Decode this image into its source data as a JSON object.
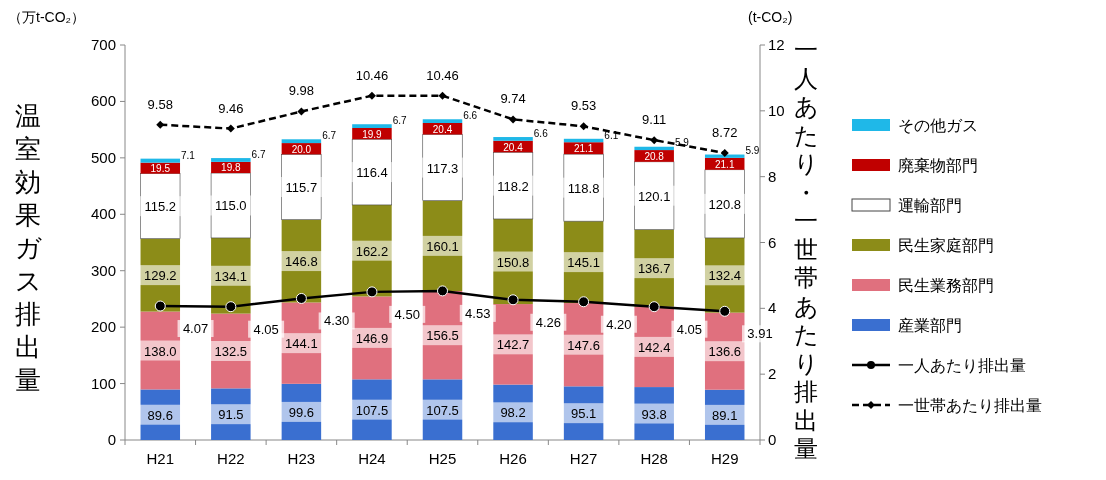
{
  "chart_data": {
    "type": "bar",
    "stacked": true,
    "categories": [
      "H21",
      "H22",
      "H23",
      "H24",
      "H25",
      "H26",
      "H27",
      "H28",
      "H29"
    ],
    "ylabel": "温室効果ガス排出量",
    "y2label": "一人あたり・一世帯あたり排出量",
    "ylim": [
      0,
      700
    ],
    "yticks": [
      0,
      100,
      200,
      300,
      400,
      500,
      600,
      700
    ],
    "y2lim": [
      0,
      12
    ],
    "y2ticks": [
      0,
      2,
      4,
      6,
      8,
      10,
      12
    ],
    "grid": false,
    "legend": "right",
    "annotations": [
      "（万t-CO₂）",
      "(t-CO₂)"
    ],
    "series": [
      {
        "name": "産業部門",
        "color": "#3a6fd0",
        "values": [
          89.6,
          91.5,
          99.6,
          107.5,
          107.5,
          98.2,
          95.1,
          93.8,
          89.1
        ],
        "value_labels": [
          "89.6",
          "91.5",
          "99.6",
          "107.5",
          "107.5",
          "98.2",
          "95.1",
          "93.8",
          "89.1"
        ]
      },
      {
        "name": "民生業務部門",
        "color": "#e0707e",
        "values": [
          138.0,
          132.5,
          144.1,
          146.9,
          156.5,
          142.7,
          147.6,
          142.4,
          136.6
        ],
        "value_labels": [
          "138.0",
          "132.5",
          "144.1",
          "146.9",
          "156.5",
          "142.7",
          "147.6",
          "142.4",
          "136.6"
        ]
      },
      {
        "name": "民生家庭部門",
        "color": "#8c8c18",
        "values": [
          129.2,
          134.1,
          146.8,
          162.2,
          160.1,
          150.8,
          145.1,
          136.7,
          132.4
        ],
        "value_labels": [
          "129.2",
          "134.1",
          "146.8",
          "162.2",
          "160.1",
          "150.8",
          "145.1",
          "136.7",
          "132.4"
        ]
      },
      {
        "name": "運輸部門",
        "color": "#ffffff",
        "values": [
          115.2,
          115.0,
          115.7,
          116.4,
          117.3,
          118.2,
          118.8,
          120.1,
          120.8
        ],
        "value_labels": [
          "115.2",
          "115.0",
          "115.7",
          "116.4",
          "117.3",
          "118.2",
          "118.8",
          "120.1",
          "120.8"
        ]
      },
      {
        "name": "廃棄物部門",
        "color": "#c00000",
        "values": [
          19.5,
          19.8,
          20.0,
          19.9,
          20.4,
          20.4,
          21.1,
          20.8,
          21.1
        ],
        "value_labels": [
          "19.5",
          "19.8",
          "20.0",
          "19.9",
          "20.4",
          "20.4",
          "21.1",
          "20.8",
          "21.1"
        ]
      },
      {
        "name": "その他ガス",
        "color": "#1fb8e8",
        "values": [
          7.1,
          6.7,
          6.7,
          6.7,
          6.6,
          6.6,
          6.1,
          5.9,
          5.9
        ],
        "value_labels": [
          "7.1",
          "6.7",
          "6.7",
          "6.7",
          "6.6",
          "6.6",
          "6.1",
          "5.9",
          "5.9"
        ]
      },
      {
        "name": "一人あたり排出量",
        "type": "line",
        "axis": "y2",
        "color": "#000000",
        "marker": "circle",
        "line_style": "solid",
        "values": [
          4.07,
          4.05,
          4.3,
          4.5,
          4.53,
          4.26,
          4.2,
          4.05,
          3.91
        ],
        "value_labels": [
          "4.07",
          "4.05",
          "4.30",
          "4.50",
          "4.53",
          "4.26",
          "4.20",
          "4.05",
          "3.91"
        ]
      },
      {
        "name": "一世帯あたり排出量",
        "type": "line",
        "axis": "y2",
        "color": "#000000",
        "marker": "diamond",
        "line_style": "dashed",
        "values": [
          9.58,
          9.46,
          9.98,
          10.46,
          10.46,
          9.74,
          9.53,
          9.11,
          8.72
        ],
        "value_labels": [
          "9.58",
          "9.46",
          "9.98",
          "10.46",
          "10.46",
          "9.74",
          "9.53",
          "9.11",
          "8.72"
        ]
      }
    ]
  }
}
